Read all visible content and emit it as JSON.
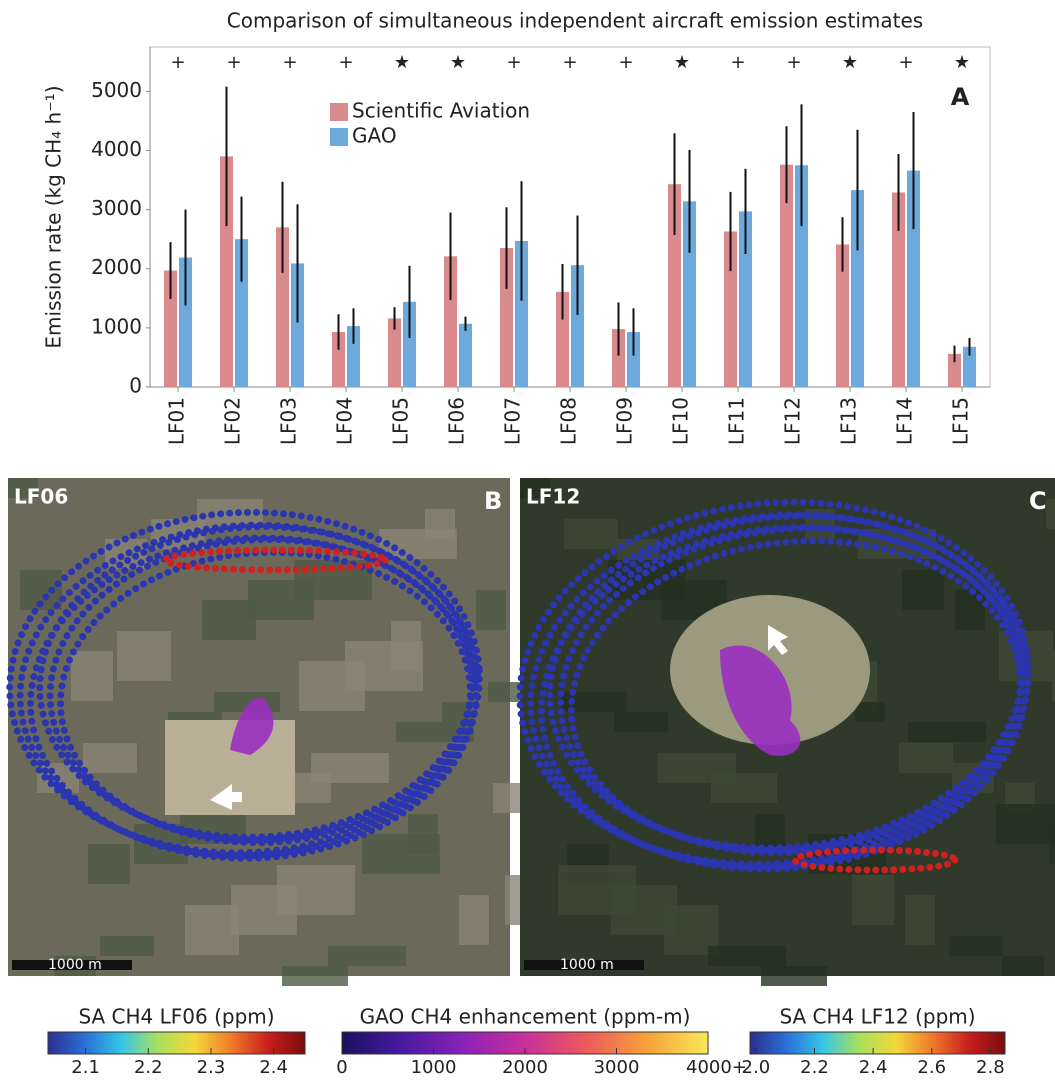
{
  "chart_data": {
    "type": "bar",
    "title": "Comparison of simultaneous independent aircraft emission estimates",
    "panel_label": "A",
    "y_label": "Emission rate (kg CH₄ h⁻¹)",
    "categories": [
      "LF01",
      "LF02",
      "LF03",
      "LF04",
      "LF05",
      "LF06",
      "LF07",
      "LF08",
      "LF09",
      "LF10",
      "LF11",
      "LF12",
      "LF13",
      "LF14",
      "LF15"
    ],
    "markers": [
      "+",
      "+",
      "+",
      "+",
      "★",
      "★",
      "+",
      "+",
      "+",
      "★",
      "+",
      "+",
      "★",
      "+",
      "★"
    ],
    "series": [
      {
        "name": "Scientific Aviation",
        "color": "#d98a8c",
        "values": [
          1970,
          3900,
          2700,
          930,
          1160,
          2210,
          2350,
          1610,
          980,
          3430,
          2630,
          3760,
          2410,
          3290,
          560
        ],
        "errors": [
          480,
          1180,
          770,
          300,
          190,
          740,
          690,
          470,
          450,
          860,
          670,
          650,
          460,
          650,
          140
        ]
      },
      {
        "name": "GAO",
        "color": "#6ea9dd",
        "values": [
          2190,
          2500,
          2090,
          1030,
          1440,
          1070,
          2470,
          2060,
          930,
          3140,
          2970,
          3750,
          3330,
          3660,
          680
        ],
        "errors": [
          810,
          720,
          1000,
          300,
          610,
          120,
          1010,
          840,
          400,
          870,
          720,
          1030,
          1020,
          990,
          150
        ]
      }
    ],
    "ylim": [
      0,
      5750
    ],
    "yticks": [
      0,
      1000,
      2000,
      3000,
      4000,
      5000
    ],
    "grid": false
  },
  "maps": [
    {
      "site": "LF06",
      "panel_label": "B",
      "scale": "1000 m"
    },
    {
      "site": "LF12",
      "panel_label": "C",
      "scale": "1000 m"
    }
  ],
  "colorbars": [
    {
      "title": "SA CH4 LF06 (ppm)",
      "lim": [
        2.04,
        2.45
      ],
      "ticks": [
        2.1,
        2.2,
        2.3,
        2.4
      ],
      "colors": [
        "#2b2f8f",
        "#2a6fd6",
        "#35c6e8",
        "#a8e05a",
        "#f3d83a",
        "#f07a2a",
        "#c81e1e",
        "#7a0d0d"
      ]
    },
    {
      "title": "GAO CH4 enhancement (ppm-m)",
      "lim": [
        0,
        4000
      ],
      "ticks": [
        0,
        1000,
        2000,
        3000,
        {
          "value": 4000,
          "label": "4000+"
        }
      ],
      "colors": [
        "#1a1060",
        "#4a1aa0",
        "#8a22b8",
        "#c8309a",
        "#ec5a5a",
        "#f6a23a",
        "#f8e858"
      ]
    },
    {
      "title": "SA CH4 LF12 (ppm)",
      "lim": [
        1.98,
        2.85
      ],
      "ticks": [
        {
          "value": 2,
          "label": "2.0"
        },
        2.2,
        2.4,
        2.6,
        2.8
      ],
      "colors": [
        "#2b2f8f",
        "#2a6fd6",
        "#35c6e8",
        "#a8e05a",
        "#f3d83a",
        "#f07a2a",
        "#c81e1e",
        "#7a0d0d"
      ]
    }
  ]
}
